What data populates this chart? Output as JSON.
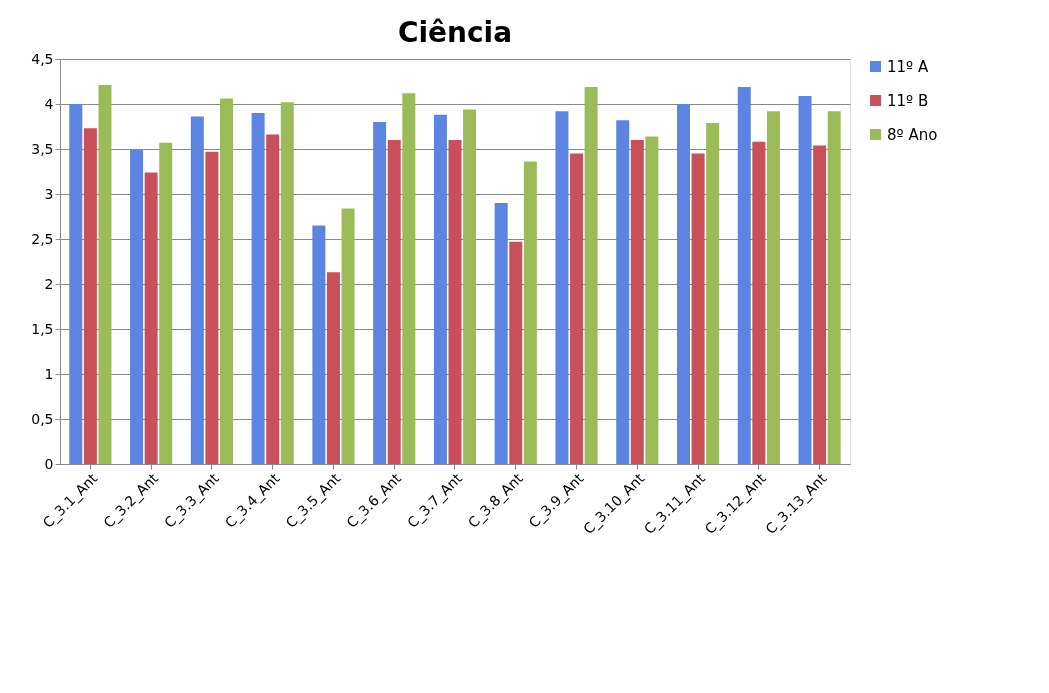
{
  "chart_data": {
    "type": "bar",
    "title": "Ciência",
    "categories": [
      "C_3.1_Ant",
      "C_3.2_Ant",
      "C_3.3_Ant",
      "C_3.4_Ant",
      "C_3.5_Ant",
      "C_3.6_Ant",
      "C_3.7_Ant",
      "C_3.8_Ant",
      "C_3.9_Ant",
      "C_3.10_Ant",
      "C_3.11_Ant",
      "C_3.12_Ant",
      "C_3.13_Ant"
    ],
    "series": [
      {
        "name": "11º A",
        "color": "#5b84e3",
        "values": [
          4.0,
          3.49,
          3.86,
          3.9,
          2.65,
          3.8,
          3.88,
          2.9,
          3.92,
          3.82,
          4.0,
          4.19,
          4.09
        ]
      },
      {
        "name": "11º B",
        "color": "#c9505a",
        "values": [
          3.73,
          3.24,
          3.47,
          3.66,
          2.13,
          3.6,
          3.6,
          2.47,
          3.45,
          3.6,
          3.45,
          3.58,
          3.54
        ]
      },
      {
        "name": "8º Ano",
        "color": "#9bbb59",
        "values": [
          4.21,
          3.57,
          4.06,
          4.02,
          2.84,
          4.12,
          3.94,
          3.36,
          4.19,
          3.64,
          3.79,
          3.92,
          3.92
        ]
      }
    ],
    "ylim": [
      0,
      4.5
    ],
    "yticks": [
      0,
      {
        "value": 0.5,
        "label": "0,5"
      },
      1,
      {
        "value": 1.5,
        "label": "1,5"
      },
      2,
      {
        "value": 2.5,
        "label": "2,5"
      },
      3,
      {
        "value": 3.5,
        "label": "3,5"
      },
      4,
      {
        "value": 4.5,
        "label": "4,5"
      }
    ],
    "grid": "y",
    "legend": "right"
  }
}
